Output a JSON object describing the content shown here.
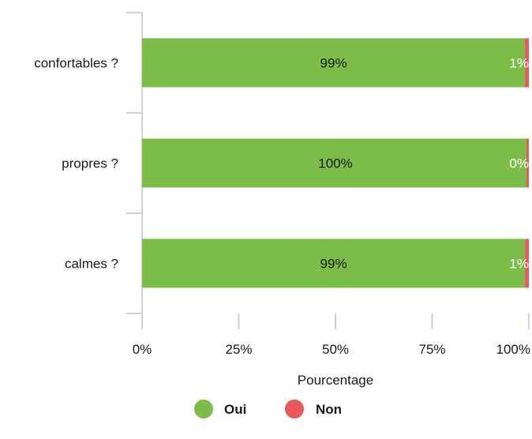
{
  "chart_data": {
    "type": "bar",
    "orientation": "horizontal",
    "stacked": true,
    "categories": [
      "confortables ?",
      "propres ?",
      "calmes ?"
    ],
    "series": [
      {
        "name": "Oui",
        "color": "#7cbd4a",
        "values": [
          99,
          100,
          99
        ],
        "labels": [
          "99%",
          "100%",
          "99%"
        ]
      },
      {
        "name": "Non",
        "color": "#e8585a",
        "values": [
          1,
          0,
          1
        ],
        "labels": [
          "1%",
          "0%",
          "1%"
        ]
      }
    ],
    "xlabel": "Pourcentage",
    "xlim": [
      0,
      100
    ],
    "xticks": [
      0,
      25,
      50,
      75,
      100
    ],
    "xtick_labels": [
      "0%",
      "25%",
      "50%",
      "75%",
      "100%"
    ],
    "axis_color": "#c9d3e0",
    "grid": false,
    "legend": {
      "position": "bottom-center",
      "items": [
        "Oui",
        "Non"
      ]
    }
  }
}
